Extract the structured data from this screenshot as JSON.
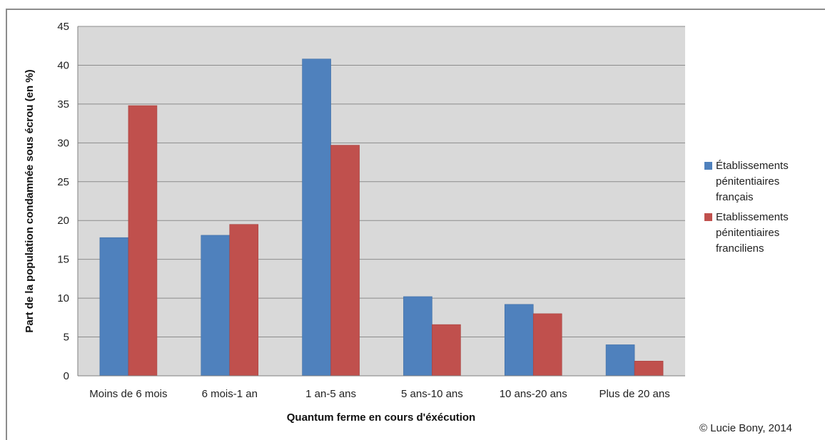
{
  "chart_data": {
    "type": "bar",
    "title": "",
    "xlabel": "Quantum ferme en cours d'éxécution",
    "ylabel": "Part de la population condamnée sous écrou (en %)",
    "ylim": [
      0,
      45
    ],
    "yticks": [
      0,
      5,
      10,
      15,
      20,
      25,
      30,
      35,
      40,
      45
    ],
    "grid": true,
    "legend_position": "right",
    "categories": [
      "Moins de 6 mois",
      "6 mois-1 an",
      "1 an-5 ans",
      "5 ans-10 ans",
      "10 ans-20 ans",
      "Plus de 20 ans"
    ],
    "series": [
      {
        "name": "Établissements pénitentiaires français",
        "legend_lines": [
          "Établissements",
          "pénitentiaires",
          "français"
        ],
        "color": "#4f81bd",
        "values": [
          17.8,
          18.1,
          40.8,
          10.2,
          9.2,
          4.0
        ]
      },
      {
        "name": "Etablissements pénitentiaires franciliens",
        "legend_lines": [
          "Etablissements",
          "pénitentiaires",
          "franciliens"
        ],
        "color": "#c0504d",
        "values": [
          34.8,
          19.5,
          29.7,
          6.6,
          8.0,
          1.9
        ]
      }
    ]
  },
  "credit": "© Lucie Bony, 2014"
}
